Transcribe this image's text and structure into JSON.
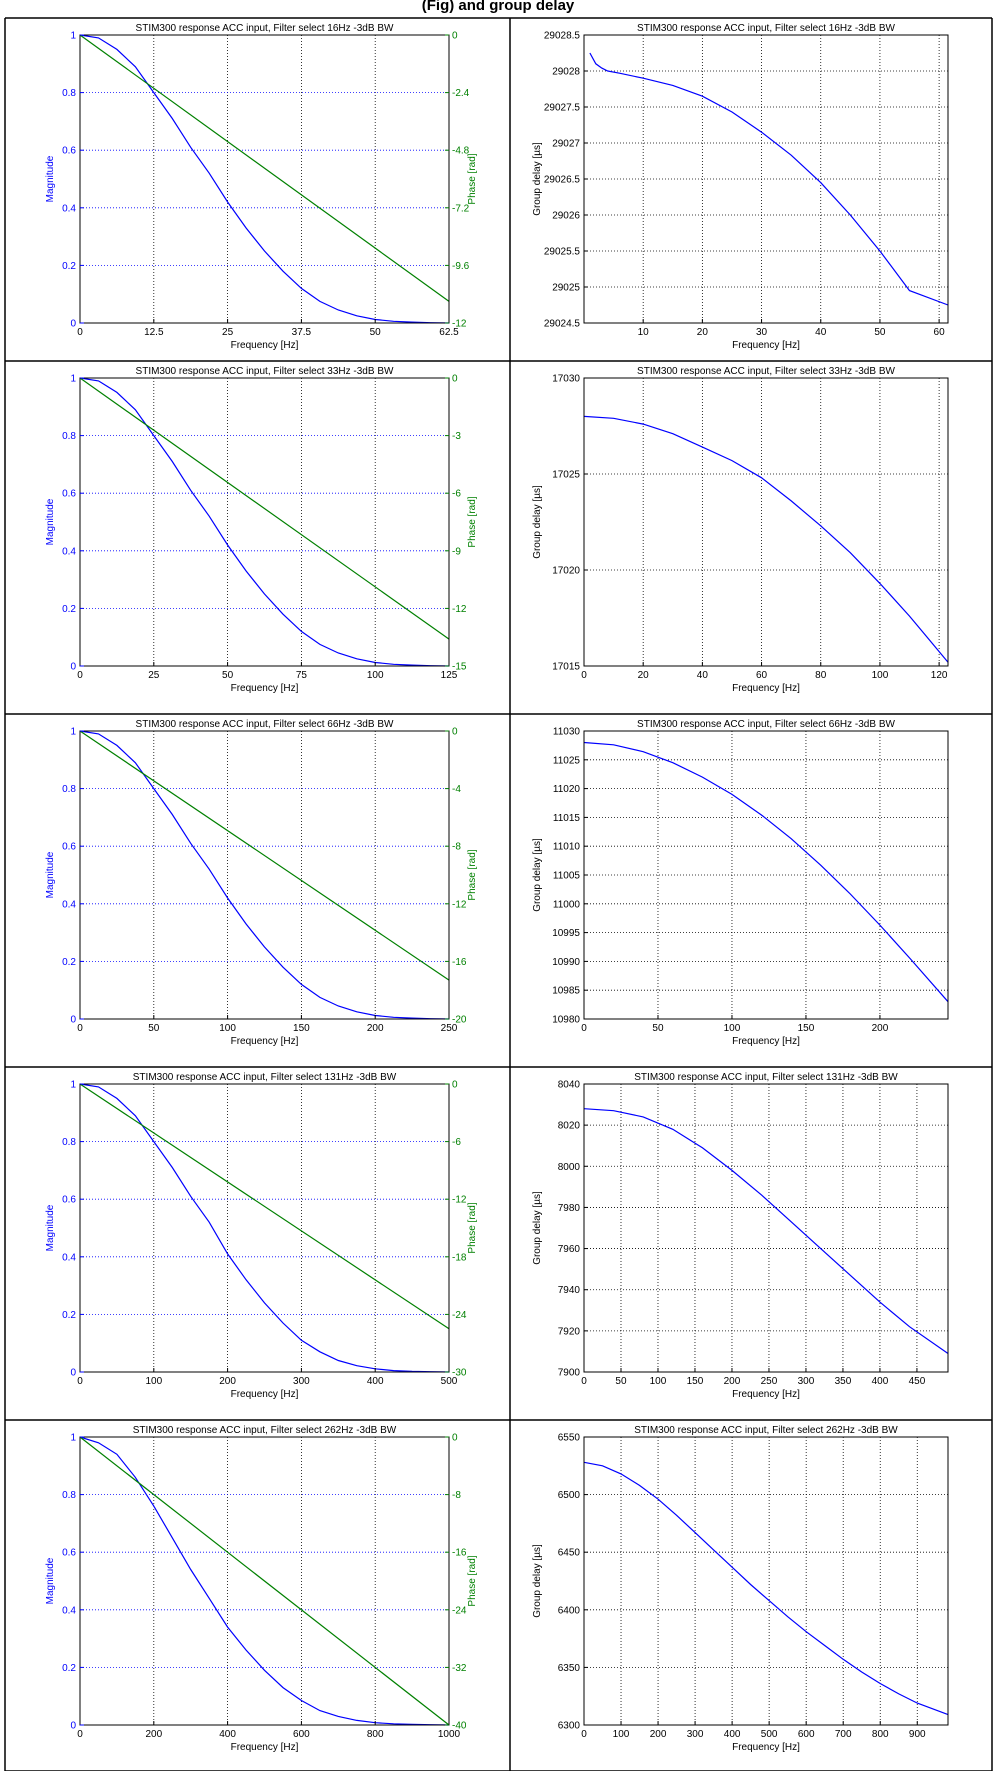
{
  "page_title": "(Fig) and group delay",
  "colors": {
    "magnitude": "#0000ff",
    "phase": "#008000",
    "delay": "#0000ff",
    "grid": "#000000",
    "blue_grid": "#0000ff"
  },
  "chart_data": [
    {
      "type": "line",
      "title": "STIM300 response ACC input, Filter select 16Hz -3dB BW",
      "xlabel": "Frequency [Hz]",
      "ylabel": "Magnitude",
      "y2label": "Phase [rad]",
      "xlim": [
        0,
        62.5
      ],
      "xticks": [
        "0",
        "12.5",
        "25",
        "37.5",
        "50",
        "62.5"
      ],
      "ylim": [
        0,
        1
      ],
      "yticks": [
        "0",
        "0.2",
        "0.4",
        "0.6",
        "0.8",
        "1"
      ],
      "y2lim": [
        -12,
        0
      ],
      "y2ticks": [
        "-12",
        "-9.6",
        "-7.2",
        "-4.8",
        "-2.4",
        "0"
      ],
      "series": [
        {
          "name": "Magnitude",
          "axis": "left",
          "x": [
            0,
            3.125,
            6.25,
            9.375,
            12.5,
            15.625,
            18.75,
            21.875,
            25,
            28.125,
            31.25,
            34.375,
            37.5,
            40.625,
            43.75,
            46.875,
            50,
            53.125,
            56.25,
            59.375,
            62.5
          ],
          "y": [
            1,
            0.99,
            0.95,
            0.89,
            0.8,
            0.71,
            0.61,
            0.52,
            0.42,
            0.33,
            0.25,
            0.18,
            0.12,
            0.075,
            0.045,
            0.025,
            0.012,
            0.006,
            0.003,
            0.001,
            0
          ]
        },
        {
          "name": "Phase",
          "axis": "right",
          "x": [
            0,
            62.5
          ],
          "y": [
            0,
            -11.1
          ]
        }
      ]
    },
    {
      "type": "line",
      "title": "STIM300 response ACC input, Filter select 16Hz -3dB BW",
      "xlabel": "Frequency [Hz]",
      "ylabel": "Group delay [µs]",
      "xlim": [
        0,
        61.5
      ],
      "xticks": [
        "10",
        "20",
        "30",
        "40",
        "50",
        "60"
      ],
      "ylim": [
        29024.5,
        29028.5
      ],
      "yticks": [
        "29024.5",
        "29025",
        "29025.5",
        "29026",
        "29026.5",
        "29027",
        "29027.5",
        "29028",
        "29028.5"
      ],
      "series": [
        {
          "name": "Group delay",
          "axis": "left",
          "x": [
            1,
            2,
            3,
            4,
            6,
            10,
            15,
            20,
            25,
            30,
            35,
            40,
            45,
            50,
            55,
            61.5
          ],
          "y": [
            29028.25,
            29028.1,
            29028.04,
            29028.0,
            29027.97,
            29027.9,
            29027.8,
            29027.65,
            29027.43,
            29027.15,
            29026.83,
            29026.45,
            29026.0,
            29025.5,
            29024.95,
            29024.75
          ]
        }
      ]
    },
    {
      "type": "line",
      "title": "STIM300 response ACC input, Filter select 33Hz -3dB BW",
      "xlabel": "Frequency [Hz]",
      "ylabel": "Magnitude",
      "y2label": "Phase [rad]",
      "xlim": [
        0,
        125
      ],
      "xticks": [
        "0",
        "25",
        "50",
        "75",
        "100",
        "125"
      ],
      "ylim": [
        0,
        1
      ],
      "yticks": [
        "0",
        "0.2",
        "0.4",
        "0.6",
        "0.8",
        "1"
      ],
      "y2lim": [
        -15,
        0
      ],
      "y2ticks": [
        "-15",
        "-12",
        "-9",
        "-6",
        "-3",
        "0"
      ],
      "series": [
        {
          "name": "Magnitude",
          "axis": "left",
          "x": [
            0,
            6.25,
            12.5,
            18.75,
            25,
            31.25,
            37.5,
            43.75,
            50,
            56.25,
            62.5,
            68.75,
            75,
            81.25,
            87.5,
            93.75,
            100,
            106.25,
            112.5,
            118.75,
            125
          ],
          "y": [
            1,
            0.99,
            0.95,
            0.89,
            0.8,
            0.71,
            0.61,
            0.52,
            0.42,
            0.33,
            0.25,
            0.18,
            0.12,
            0.075,
            0.045,
            0.025,
            0.012,
            0.006,
            0.003,
            0.001,
            0
          ]
        },
        {
          "name": "Phase",
          "axis": "right",
          "x": [
            0,
            125
          ],
          "y": [
            0,
            -13.6
          ]
        }
      ]
    },
    {
      "type": "line",
      "title": "STIM300 response ACC input, Filter select 33Hz -3dB BW",
      "xlabel": "Frequency [Hz]",
      "ylabel": "Group delay [µs]",
      "xlim": [
        0,
        123
      ],
      "xticks": [
        "0",
        "20",
        "40",
        "60",
        "80",
        "100",
        "120"
      ],
      "ylim": [
        17015,
        17030
      ],
      "yticks": [
        "17015",
        "17020",
        "17025",
        "17030"
      ],
      "series": [
        {
          "name": "Group delay",
          "axis": "left",
          "x": [
            0,
            10,
            20,
            30,
            40,
            50,
            60,
            70,
            80,
            90,
            100,
            110,
            123
          ],
          "y": [
            17028.0,
            17027.9,
            17027.6,
            17027.1,
            17026.4,
            17025.7,
            17024.8,
            17023.6,
            17022.3,
            17020.9,
            17019.3,
            17017.6,
            17015.2
          ]
        }
      ]
    },
    {
      "type": "line",
      "title": "STIM300 response ACC input, Filter select 66Hz -3dB BW",
      "xlabel": "Frequency [Hz]",
      "ylabel": "Magnitude",
      "y2label": "Phase [rad]",
      "xlim": [
        0,
        250
      ],
      "xticks": [
        "0",
        "50",
        "100",
        "150",
        "200",
        "250"
      ],
      "ylim": [
        0,
        1
      ],
      "yticks": [
        "0",
        "0.2",
        "0.4",
        "0.6",
        "0.8",
        "1"
      ],
      "y2lim": [
        -20,
        0
      ],
      "y2ticks": [
        "-20",
        "-16",
        "-12",
        "-8",
        "-4",
        "0"
      ],
      "series": [
        {
          "name": "Magnitude",
          "axis": "left",
          "x": [
            0,
            12.5,
            25,
            37.5,
            50,
            62.5,
            75,
            87.5,
            100,
            112.5,
            125,
            137.5,
            150,
            162.5,
            175,
            187.5,
            200,
            212.5,
            225,
            237.5,
            250
          ],
          "y": [
            1,
            0.99,
            0.95,
            0.89,
            0.8,
            0.71,
            0.61,
            0.52,
            0.42,
            0.33,
            0.25,
            0.18,
            0.12,
            0.075,
            0.045,
            0.025,
            0.012,
            0.006,
            0.003,
            0.001,
            0
          ]
        },
        {
          "name": "Phase",
          "axis": "right",
          "x": [
            0,
            250
          ],
          "y": [
            0,
            -17.3
          ]
        }
      ]
    },
    {
      "type": "line",
      "title": "STIM300 response ACC input, Filter select 66Hz -3dB BW",
      "xlabel": "Frequency [Hz]",
      "ylabel": "Group delay [µs]",
      "xlim": [
        0,
        246
      ],
      "xticks": [
        "0",
        "50",
        "100",
        "150",
        "200"
      ],
      "ylim": [
        10980,
        11030
      ],
      "yticks": [
        "10980",
        "10985",
        "10990",
        "10995",
        "11000",
        "11005",
        "11010",
        "11015",
        "11020",
        "11025",
        "11030"
      ],
      "series": [
        {
          "name": "Group delay",
          "axis": "left",
          "x": [
            0,
            20,
            40,
            60,
            80,
            100,
            120,
            140,
            160,
            180,
            200,
            220,
            246
          ],
          "y": [
            11028.0,
            11027.6,
            11026.4,
            11024.5,
            11022.0,
            11019.0,
            11015.4,
            11011.3,
            11006.7,
            11001.7,
            10996.3,
            10990.6,
            10983.0
          ]
        }
      ]
    },
    {
      "type": "line",
      "title": "STIM300 response ACC input, Filter select 131Hz -3dB BW",
      "xlabel": "Frequency [Hz]",
      "ylabel": "Magnitude",
      "y2label": "Phase [rad]",
      "xlim": [
        0,
        500
      ],
      "xticks": [
        "0",
        "100",
        "200",
        "300",
        "400",
        "500"
      ],
      "ylim": [
        0,
        1
      ],
      "yticks": [
        "0",
        "0.2",
        "0.4",
        "0.6",
        "0.8",
        "1"
      ],
      "y2lim": [
        -30,
        0
      ],
      "y2ticks": [
        "-30",
        "-24",
        "-18",
        "-12",
        "-6",
        "0"
      ],
      "series": [
        {
          "name": "Magnitude",
          "axis": "left",
          "x": [
            0,
            25,
            50,
            75,
            100,
            125,
            150,
            175,
            200,
            225,
            250,
            275,
            300,
            325,
            350,
            375,
            400,
            425,
            450,
            475,
            500
          ],
          "y": [
            1,
            0.99,
            0.95,
            0.89,
            0.8,
            0.71,
            0.61,
            0.52,
            0.41,
            0.32,
            0.24,
            0.17,
            0.11,
            0.07,
            0.04,
            0.022,
            0.011,
            0.005,
            0.002,
            0.001,
            0
          ]
        },
        {
          "name": "Phase",
          "axis": "right",
          "x": [
            0,
            500
          ],
          "y": [
            0,
            -25.5
          ]
        }
      ]
    },
    {
      "type": "line",
      "title": "STIM300 response ACC input, Filter select 131Hz -3dB BW",
      "xlabel": "Frequency [Hz]",
      "ylabel": "Group delay [µs]",
      "xlim": [
        0,
        492
      ],
      "xticks": [
        "0",
        "50",
        "100",
        "150",
        "200",
        "250",
        "300",
        "350",
        "400",
        "450"
      ],
      "ylim": [
        7900,
        8040
      ],
      "yticks": [
        "7900",
        "7920",
        "7940",
        "7960",
        "7980",
        "8000",
        "8020",
        "8040"
      ],
      "series": [
        {
          "name": "Group delay",
          "axis": "left",
          "x": [
            0,
            40,
            80,
            120,
            160,
            200,
            240,
            280,
            320,
            360,
            400,
            440,
            492
          ],
          "y": [
            8028,
            8027,
            8024,
            8018,
            8009,
            7998,
            7986,
            7973,
            7960,
            7947,
            7934,
            7922,
            7909
          ]
        }
      ]
    },
    {
      "type": "line",
      "title": "STIM300 response ACC input, Filter select 262Hz -3dB BW",
      "xlabel": "Frequency [Hz]",
      "ylabel": "Magnitude",
      "y2label": "Phase [rad]",
      "xlim": [
        0,
        1000
      ],
      "xticks": [
        "0",
        "200",
        "400",
        "600",
        "800",
        "1000"
      ],
      "ylim": [
        0,
        1
      ],
      "yticks": [
        "0",
        "0.2",
        "0.4",
        "0.6",
        "0.8",
        "1"
      ],
      "y2lim": [
        -40,
        0
      ],
      "y2ticks": [
        "-40",
        "-32",
        "-24",
        "-16",
        "-8",
        "0"
      ],
      "series": [
        {
          "name": "Magnitude",
          "axis": "left",
          "x": [
            0,
            50,
            100,
            150,
            200,
            250,
            300,
            350,
            400,
            450,
            500,
            550,
            600,
            650,
            700,
            750,
            800,
            850,
            900,
            950,
            1000
          ],
          "y": [
            1,
            0.98,
            0.94,
            0.86,
            0.76,
            0.65,
            0.54,
            0.44,
            0.34,
            0.26,
            0.19,
            0.13,
            0.085,
            0.05,
            0.03,
            0.016,
            0.008,
            0.004,
            0.002,
            0.001,
            0
          ]
        },
        {
          "name": "Phase",
          "axis": "right",
          "x": [
            0,
            1000
          ],
          "y": [
            0,
            -40
          ]
        }
      ]
    },
    {
      "type": "line",
      "title": "STIM300 response ACC input, Filter select 262Hz -3dB BW",
      "xlabel": "Frequency [Hz]",
      "ylabel": "Group delay [µs]",
      "xlim": [
        0,
        983
      ],
      "xticks": [
        "0",
        "100",
        "200",
        "300",
        "400",
        "500",
        "600",
        "700",
        "800",
        "900"
      ],
      "ylim": [
        6300,
        6550
      ],
      "yticks": [
        "6300",
        "6350",
        "6400",
        "6450",
        "6500",
        "6550"
      ],
      "series": [
        {
          "name": "Group delay",
          "axis": "left",
          "x": [
            0,
            50,
            100,
            150,
            200,
            250,
            300,
            350,
            400,
            450,
            500,
            550,
            600,
            650,
            700,
            750,
            800,
            850,
            900,
            983
          ],
          "y": [
            6528,
            6525,
            6518,
            6508,
            6496,
            6482,
            6467,
            6452,
            6437,
            6422,
            6408,
            6394,
            6381,
            6369,
            6357,
            6346,
            6336,
            6327,
            6319,
            6309
          ]
        }
      ]
    }
  ]
}
